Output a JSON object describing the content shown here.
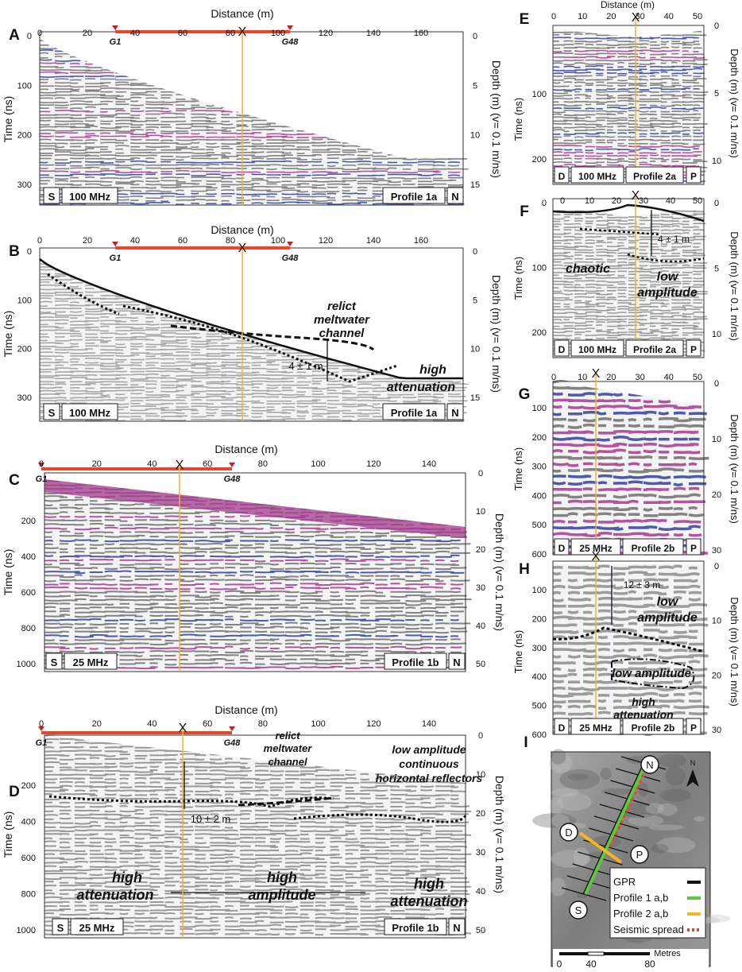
{
  "figure": {
    "panels": [
      {
        "id": "A",
        "x_title": "Distance (m)",
        "x_ticks": [
          "0",
          "20",
          "40",
          "60",
          "80",
          "100",
          "120",
          "140",
          "160"
        ],
        "y_label": "Time (ns)",
        "y_ticks": [
          "0",
          "100",
          "200",
          "300"
        ],
        "depth_label": "Depth (m) (v= 0.1 m/ns)",
        "depth_ticks": [
          "0",
          "5",
          "10",
          "15"
        ],
        "geophone_start": "G1",
        "geophone_end": "G48",
        "cross_mark": "X",
        "left_dir": "S",
        "right_dir": "N",
        "frequency": "100 MHz",
        "profile": "Profile 1a"
      },
      {
        "id": "B",
        "x_title": "Distance (m)",
        "x_ticks": [
          "0",
          "20",
          "40",
          "60",
          "80",
          "100",
          "120",
          "140",
          "160"
        ],
        "y_label": "Time (ns)",
        "y_ticks": [
          "0",
          "100",
          "200",
          "300"
        ],
        "depth_label": "Depth (m) (v= 0.1 m/ns)",
        "depth_ticks": [
          "0",
          "5",
          "10",
          "15"
        ],
        "geophone_start": "G1",
        "geophone_end": "G48",
        "cross_mark": "X",
        "left_dir": "S",
        "right_dir": "N",
        "frequency": "100 MHz",
        "profile": "Profile 1a",
        "annotations": [
          "relict",
          "meltwater",
          "channel",
          "4 ± 1 m",
          "high",
          "attenuation"
        ]
      },
      {
        "id": "C",
        "x_title": "Distance (m)",
        "x_ticks": [
          "0",
          "20",
          "40",
          "60",
          "80",
          "100",
          "120",
          "140"
        ],
        "y_label": "Time (ns)",
        "y_ticks": [
          "200",
          "400",
          "600",
          "800",
          "1000"
        ],
        "depth_label": "Depth (m) (v= 0.1 m/ns)",
        "depth_ticks": [
          "0",
          "10",
          "20",
          "30",
          "40",
          "50"
        ],
        "geophone_start": "G1",
        "geophone_end": "G48",
        "cross_mark": "X",
        "left_dir": "S",
        "right_dir": "N",
        "frequency": "25 MHz",
        "profile": "Profile 1b"
      },
      {
        "id": "D",
        "x_title": "Distance (m)",
        "x_ticks": [
          "0",
          "20",
          "40",
          "60",
          "80",
          "100",
          "120",
          "140"
        ],
        "y_label": "Time (ns)",
        "y_ticks": [
          "200",
          "400",
          "600",
          "800",
          "1000"
        ],
        "depth_label": "Depth (m) (v= 0.1 m/ns)",
        "depth_ticks": [
          "0",
          "10",
          "20",
          "30",
          "40",
          "50"
        ],
        "geophone_start": "G1",
        "geophone_end": "G48",
        "cross_mark": "X",
        "left_dir": "S",
        "right_dir": "N",
        "frequency": "25 MHz",
        "profile": "Profile 1b",
        "annotations": [
          "meltwater",
          "channel",
          "relict",
          "low amplitude",
          "continuous",
          "horizontal reflectors",
          "10 ± 2 m",
          "high",
          "attenuation",
          "high",
          "amplitude",
          "high",
          "attenuation"
        ]
      },
      {
        "id": "E",
        "x_title": "Distance (m)",
        "x_ticks": [
          "0",
          "10",
          "20",
          "30",
          "40",
          "50"
        ],
        "y_label": "Time (ns)",
        "y_ticks": [
          "100",
          "200"
        ],
        "depth_label": "Depth (m) (v= 0.1 m/ns)",
        "depth_ticks": [
          "0",
          "5",
          "10"
        ],
        "cross_mark": "X",
        "left_dir": "D",
        "right_dir": "P",
        "frequency": "100 MHz",
        "profile": "Profile 2a"
      },
      {
        "id": "F",
        "x_ticks": [
          "0",
          "10",
          "20",
          "30",
          "40",
          "50"
        ],
        "y_label": "Time (ns)",
        "y_ticks": [
          "0",
          "100",
          "200"
        ],
        "depth_label": "Depth (m) (v= 0.1 m/ns)",
        "depth_ticks": [
          "0",
          "5",
          "10"
        ],
        "cross_mark": "X",
        "left_dir": "D",
        "right_dir": "P",
        "frequency": "100 MHz",
        "profile": "Profile 2a",
        "annotations": [
          "4 ± 1 m",
          "chaotic",
          "low",
          "amplitude"
        ]
      },
      {
        "id": "G",
        "x_ticks": [
          "0",
          "10",
          "20",
          "30",
          "40",
          "50"
        ],
        "y_label": "Time (ns)",
        "y_ticks": [
          "100",
          "200",
          "300",
          "400",
          "500",
          "600"
        ],
        "depth_label": "Depth (m) (v= 0.1 m/ns)",
        "depth_ticks": [
          "0",
          "10",
          "20",
          "30"
        ],
        "cross_mark": "X",
        "left_dir": "D",
        "right_dir": "P",
        "frequency": "25 MHz",
        "profile": "Profile 2b"
      },
      {
        "id": "H",
        "y_label": "Time (ns)",
        "y_ticks": [
          "100",
          "200",
          "300",
          "400",
          "500",
          "600"
        ],
        "depth_label": "Depth (m) (v= 0.1 m/ns)",
        "depth_ticks": [
          "0",
          "10",
          "20",
          "30"
        ],
        "cross_mark": "X",
        "left_dir": "D",
        "right_dir": "P",
        "frequency": "25 MHz",
        "profile": "Profile 2b",
        "annotations": [
          "12 ± 3 m",
          "low",
          "amplitude",
          "low amplitude",
          "high",
          "attenuation"
        ]
      },
      {
        "id": "I",
        "north": "N",
        "markers": [
          "N",
          "D",
          "P",
          "S"
        ],
        "legend": [
          {
            "label": "GPR",
            "color": "#111111"
          },
          {
            "label": "Profile 1 a,b",
            "color": "#5cc83c"
          },
          {
            "label": "Profile 2 a,b",
            "color": "#f5b520"
          },
          {
            "label": "Seismic spread",
            "color": "#e8452a"
          }
        ],
        "scale_unit": "Metres",
        "scale_ticks": [
          "0",
          "40",
          "80"
        ]
      }
    ],
    "colors": {
      "geophone_line": "#e8452a",
      "cross_line": "#f0b43c",
      "radar_blue": "#2f3f9e",
      "radar_magenta": "#a43a8e"
    }
  }
}
